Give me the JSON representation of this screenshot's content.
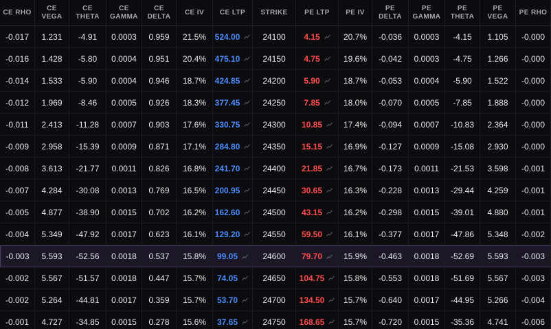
{
  "headers": [
    "CE RHO",
    "CE\nVEGA",
    "CE\nTHETA",
    "CE\nGAMMA",
    "CE\nDELTA",
    "CE IV",
    "CE LTP",
    "STRIKE",
    "PE LTP",
    "PE IV",
    "PE\nDELTA",
    "PE\nGAMMA",
    "PE\nTHETA",
    "PE\nVEGA",
    "PE RHO"
  ],
  "colors": {
    "ce_ltp": "#4d8dff",
    "pe_ltp": "#ff4d4d",
    "atm_row_bg": "#1b1726"
  },
  "ltp_icon": "mini-chart-icon",
  "atm_strike": "24600",
  "rows": [
    [
      "-0.017",
      "1.231",
      "-4.91",
      "0.0003",
      "0.959",
      "21.5%",
      "524.00",
      "24100",
      "4.15",
      "20.7%",
      "-0.036",
      "0.0003",
      "-4.15",
      "1.105",
      "-0.000"
    ],
    [
      "-0.016",
      "1.428",
      "-5.80",
      "0.0004",
      "0.951",
      "20.4%",
      "475.10",
      "24150",
      "4.75",
      "19.6%",
      "-0.042",
      "0.0003",
      "-4.75",
      "1.266",
      "-0.000"
    ],
    [
      "-0.014",
      "1.533",
      "-5.90",
      "0.0004",
      "0.946",
      "18.7%",
      "424.85",
      "24200",
      "5.90",
      "18.7%",
      "-0.053",
      "0.0004",
      "-5.90",
      "1.522",
      "-0.000"
    ],
    [
      "-0.012",
      "1.969",
      "-8.46",
      "0.0005",
      "0.926",
      "18.3%",
      "377.45",
      "24250",
      "7.85",
      "18.0%",
      "-0.070",
      "0.0005",
      "-7.85",
      "1.888",
      "-0.000"
    ],
    [
      "-0.011",
      "2.413",
      "-11.28",
      "0.0007",
      "0.903",
      "17.6%",
      "330.75",
      "24300",
      "10.85",
      "17.4%",
      "-0.094",
      "0.0007",
      "-10.83",
      "2.364",
      "-0.000"
    ],
    [
      "-0.009",
      "2.958",
      "-15.39",
      "0.0009",
      "0.871",
      "17.1%",
      "284.80",
      "24350",
      "15.15",
      "16.9%",
      "-0.127",
      "0.0009",
      "-15.08",
      "2.930",
      "-0.000"
    ],
    [
      "-0.008",
      "3.613",
      "-21.77",
      "0.0011",
      "0.826",
      "16.8%",
      "241.70",
      "24400",
      "21.85",
      "16.7%",
      "-0.173",
      "0.0011",
      "-21.53",
      "3.598",
      "-0.001"
    ],
    [
      "-0.007",
      "4.284",
      "-30.08",
      "0.0013",
      "0.769",
      "16.5%",
      "200.95",
      "24450",
      "30.65",
      "16.3%",
      "-0.228",
      "0.0013",
      "-29.44",
      "4.259",
      "-0.001"
    ],
    [
      "-0.005",
      "4.877",
      "-38.90",
      "0.0015",
      "0.702",
      "16.2%",
      "162.60",
      "24500",
      "43.15",
      "16.2%",
      "-0.298",
      "0.0015",
      "-39.01",
      "4.880",
      "-0.001"
    ],
    [
      "-0.004",
      "5.349",
      "-47.92",
      "0.0017",
      "0.623",
      "16.1%",
      "129.20",
      "24550",
      "59.50",
      "16.1%",
      "-0.377",
      "0.0017",
      "-47.86",
      "5.348",
      "-0.002"
    ],
    [
      "-0.003",
      "5.593",
      "-52.56",
      "0.0018",
      "0.537",
      "15.8%",
      "99.05",
      "24600",
      "79.70",
      "15.9%",
      "-0.463",
      "0.0018",
      "-52.69",
      "5.593",
      "-0.003"
    ],
    [
      "-0.002",
      "5.567",
      "-51.57",
      "0.0018",
      "0.447",
      "15.7%",
      "74.05",
      "24650",
      "104.75",
      "15.8%",
      "-0.553",
      "0.0018",
      "-51.69",
      "5.567",
      "-0.003"
    ],
    [
      "-0.002",
      "5.264",
      "-44.81",
      "0.0017",
      "0.359",
      "15.7%",
      "53.70",
      "24700",
      "134.50",
      "15.7%",
      "-0.640",
      "0.0017",
      "-44.95",
      "5.266",
      "-0.004"
    ],
    [
      "-0.001",
      "4.727",
      "-34.85",
      "0.0015",
      "0.278",
      "15.6%",
      "37.65",
      "24750",
      "168.65",
      "15.7%",
      "-0.720",
      "0.0015",
      "-35.36",
      "4.741",
      "-0.006"
    ]
  ]
}
